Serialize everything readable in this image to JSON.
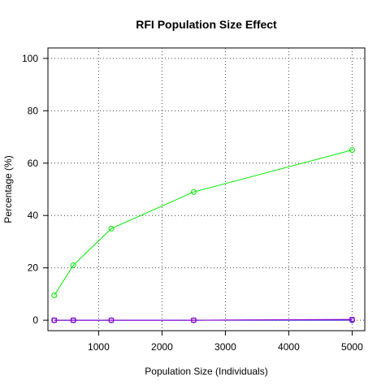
{
  "chart_data": {
    "type": "line",
    "title": "RFI Population Size Effect",
    "xlabel": "Population Size (Individuals)",
    "ylabel": "Percentage (%)",
    "xlim": [
      200,
      5200
    ],
    "ylim": [
      -4,
      104
    ],
    "x_ticks": [
      1000,
      2000,
      3000,
      4000,
      5000
    ],
    "y_ticks": [
      0,
      20,
      40,
      60,
      80,
      100
    ],
    "grid": true,
    "legend": "none",
    "series": [
      {
        "marker": "circle",
        "color": "#00ee00",
        "x": [
          300,
          600,
          1200,
          2500,
          5000
        ],
        "values": [
          9.5,
          21,
          35,
          49,
          65
        ]
      },
      {
        "marker": "circle",
        "color": "#3333cc",
        "x": [
          300,
          600,
          1200,
          2500,
          5000
        ],
        "values": [
          0,
          0,
          0,
          0,
          0
        ]
      },
      {
        "marker": "square",
        "color": "#1a1aff",
        "x": [
          300,
          600,
          1200,
          2500,
          5000
        ],
        "values": [
          0,
          0,
          0,
          0,
          0.2
        ]
      },
      {
        "marker": "square",
        "color": "#9900cc",
        "x": [
          300,
          600,
          1200,
          2500,
          5000
        ],
        "values": [
          0,
          0,
          0,
          0,
          0.3
        ]
      }
    ]
  }
}
